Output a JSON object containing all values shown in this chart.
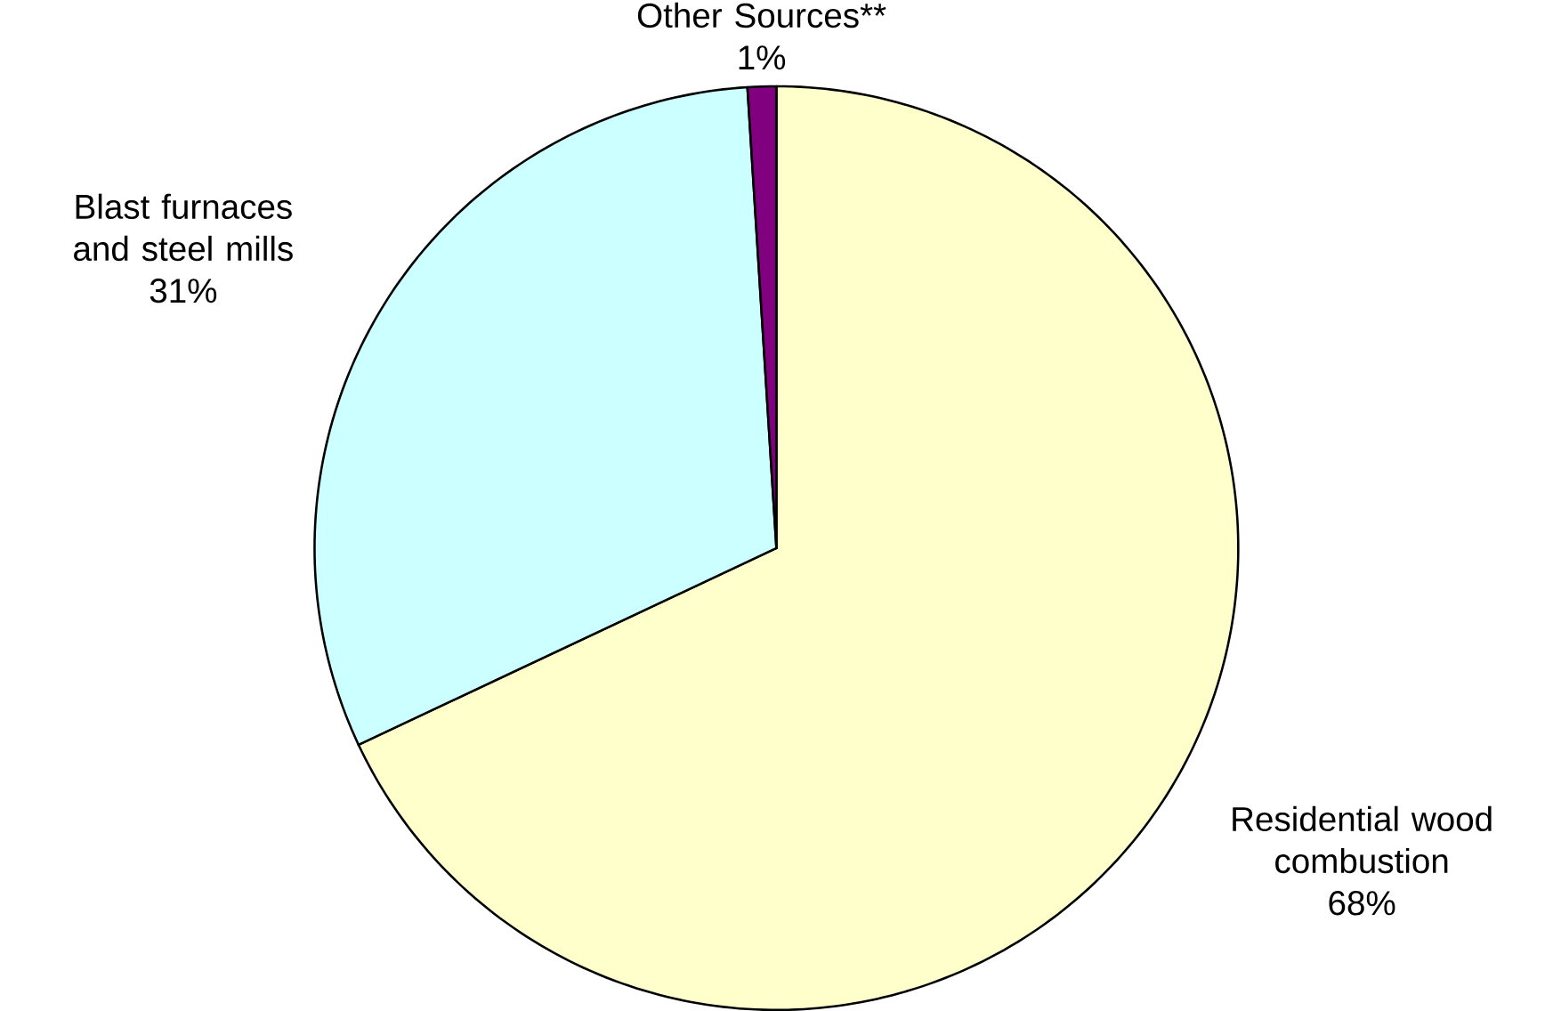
{
  "chart_data": {
    "type": "pie",
    "categories": [
      "Residential wood combustion",
      "Blast furnaces and steel mills",
      "Other Sources**"
    ],
    "values": [
      68,
      31,
      1
    ],
    "value_labels": [
      "68%",
      "31%",
      "1%"
    ],
    "colors": [
      "#ffffcc",
      "#ccffff",
      "#800080"
    ]
  }
}
